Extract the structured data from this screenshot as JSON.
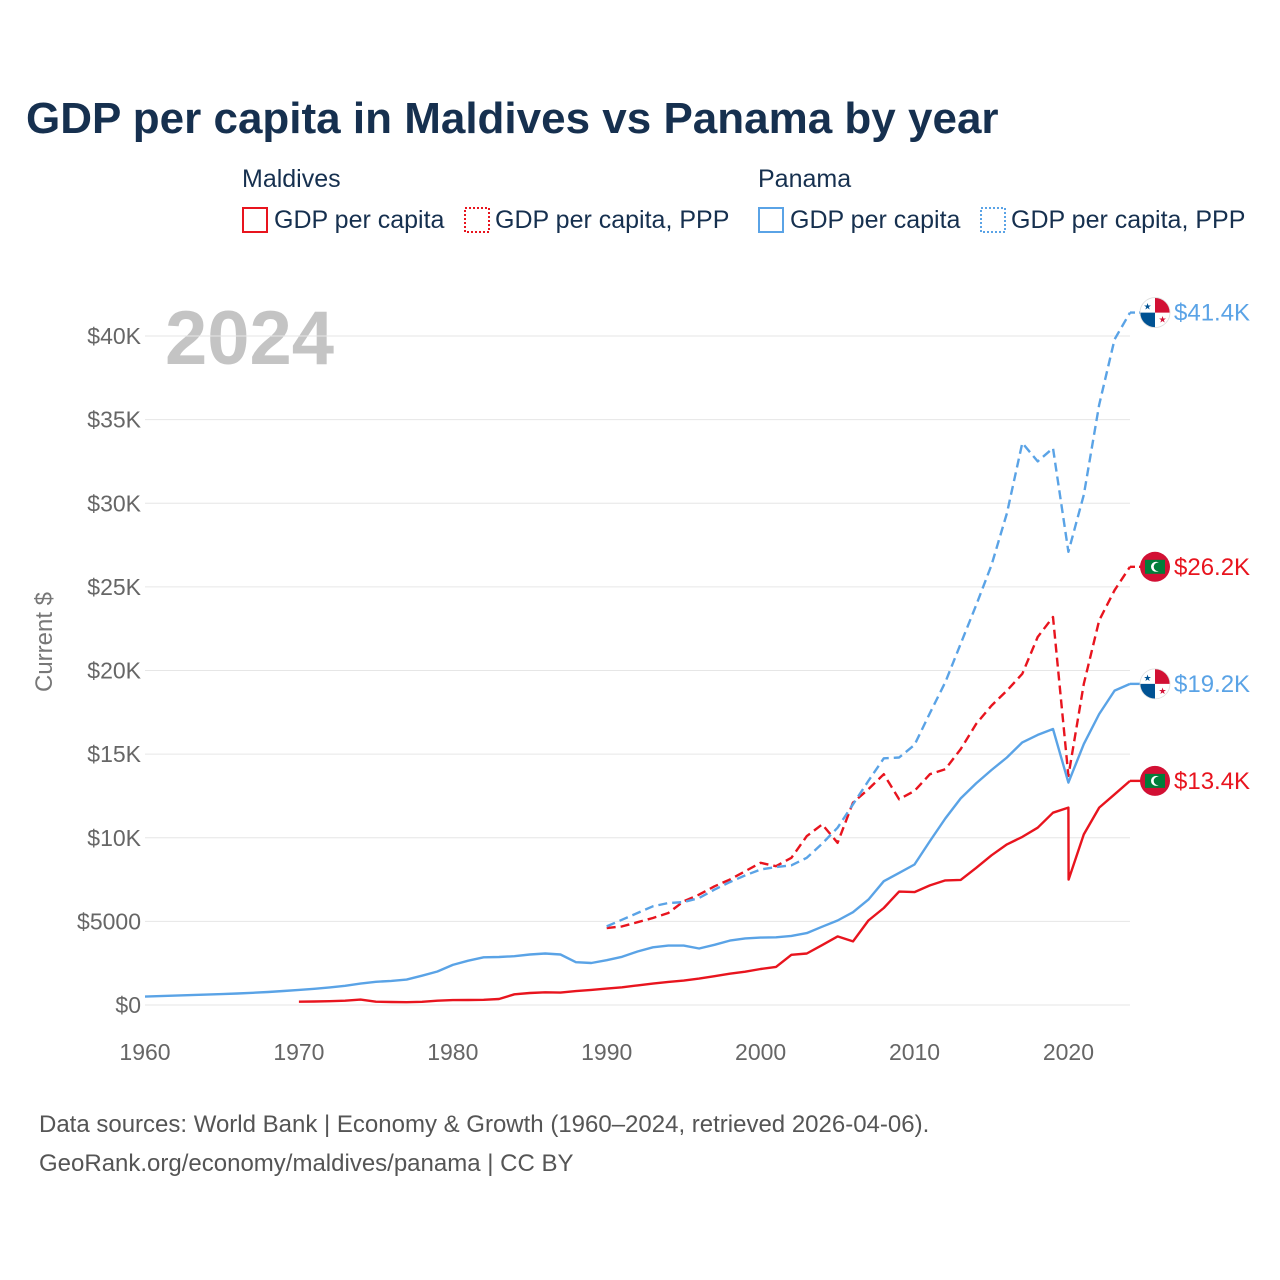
{
  "title": "GDP per capita in Maldives vs Panama by year",
  "year_label": "2024",
  "legend": {
    "groups": [
      {
        "name": "Maldives",
        "color": "#e8141e",
        "items": [
          {
            "label": "GDP per capita",
            "style": "solid"
          },
          {
            "label": "GDP per capita, PPP",
            "style": "dotted"
          }
        ]
      },
      {
        "name": "Panama",
        "color": "#5aa3e6",
        "items": [
          {
            "label": "GDP per capita",
            "style": "solid"
          },
          {
            "label": "GDP per capita, PPP",
            "style": "dotted"
          }
        ]
      }
    ]
  },
  "source": {
    "line1": "Data sources: World Bank | Economy & Growth (1960–2024, retrieved 2026-04-06).",
    "line2": "GeoRank.org/economy/maldives/panama | CC BY"
  },
  "chart_data": {
    "type": "line",
    "title": "GDP per capita in Maldives vs Panama by year",
    "xlabel": "",
    "ylabel": "Current $",
    "xlim": [
      1960,
      2024
    ],
    "ylim": [
      0,
      40000
    ],
    "x_ticks": [
      1960,
      1970,
      1980,
      1990,
      2000,
      2010,
      2020
    ],
    "x_tick_labels": [
      "1960",
      "1970",
      "1980",
      "1990",
      "2000",
      "2010",
      "2020"
    ],
    "y_ticks": [
      0,
      5000,
      10000,
      15000,
      20000,
      25000,
      30000,
      35000,
      40000
    ],
    "y_tick_labels": [
      "$0",
      "$5000",
      "$10K",
      "$15K",
      "$20K",
      "$25K",
      "$30K",
      "$35K",
      "$40K"
    ],
    "grid": true,
    "series": [
      {
        "name": "Maldives GDP per capita",
        "country": "Maldives",
        "color": "#e8141e",
        "dash": "solid",
        "end_label": "$13.4K",
        "flag": "maldives",
        "points": [
          [
            1970,
            200
          ],
          [
            1971,
            210
          ],
          [
            1972,
            230
          ],
          [
            1973,
            260
          ],
          [
            1974,
            320
          ],
          [
            1975,
            200
          ],
          [
            1976,
            180
          ],
          [
            1977,
            170
          ],
          [
            1978,
            190
          ],
          [
            1979,
            260
          ],
          [
            1980,
            290
          ],
          [
            1981,
            300
          ],
          [
            1982,
            310
          ],
          [
            1983,
            360
          ],
          [
            1984,
            640
          ],
          [
            1985,
            720
          ],
          [
            1986,
            760
          ],
          [
            1987,
            740
          ],
          [
            1988,
            830
          ],
          [
            1989,
            900
          ],
          [
            1990,
            980
          ],
          [
            1991,
            1060
          ],
          [
            1992,
            1170
          ],
          [
            1993,
            1280
          ],
          [
            1994,
            1380
          ],
          [
            1995,
            1460
          ],
          [
            1996,
            1580
          ],
          [
            1997,
            1720
          ],
          [
            1998,
            1870
          ],
          [
            1999,
            1990
          ],
          [
            2000,
            2150
          ],
          [
            2001,
            2280
          ],
          [
            2002,
            3000
          ],
          [
            2003,
            3080
          ],
          [
            2004,
            3580
          ],
          [
            2005,
            4100
          ],
          [
            2006,
            3800
          ],
          [
            2007,
            5050
          ],
          [
            2008,
            5800
          ],
          [
            2009,
            6780
          ],
          [
            2010,
            6750
          ],
          [
            2011,
            7150
          ],
          [
            2012,
            7450
          ],
          [
            2013,
            7480
          ],
          [
            2014,
            8200
          ],
          [
            2015,
            8950
          ],
          [
            2016,
            9600
          ],
          [
            2017,
            10050
          ],
          [
            2018,
            10600
          ],
          [
            2019,
            11500
          ],
          [
            2020,
            11800
          ],
          [
            2020.01,
            7500
          ],
          [
            2021,
            10200
          ],
          [
            2022,
            11800
          ],
          [
            2023,
            12600
          ],
          [
            2024,
            13400
          ]
        ]
      },
      {
        "name": "Maldives GDP per capita, PPP",
        "country": "Maldives",
        "color": "#e8141e",
        "dash": "dashed",
        "end_label": "$26.2K",
        "flag": "maldives",
        "points": [
          [
            1990,
            4600
          ],
          [
            1991,
            4700
          ],
          [
            1992,
            4950
          ],
          [
            1993,
            5200
          ],
          [
            1994,
            5500
          ],
          [
            1995,
            6200
          ],
          [
            1996,
            6600
          ],
          [
            1997,
            7100
          ],
          [
            1998,
            7500
          ],
          [
            1999,
            8000
          ],
          [
            2000,
            8500
          ],
          [
            2001,
            8300
          ],
          [
            2002,
            8800
          ],
          [
            2003,
            10100
          ],
          [
            2004,
            10800
          ],
          [
            2005,
            9700
          ],
          [
            2006,
            12100
          ],
          [
            2007,
            12900
          ],
          [
            2008,
            13800
          ],
          [
            2009,
            12300
          ],
          [
            2010,
            12800
          ],
          [
            2011,
            13800
          ],
          [
            2012,
            14100
          ],
          [
            2013,
            15300
          ],
          [
            2014,
            16800
          ],
          [
            2015,
            17900
          ],
          [
            2016,
            18800
          ],
          [
            2017,
            19800
          ],
          [
            2018,
            22000
          ],
          [
            2019,
            23200
          ],
          [
            2020,
            13700
          ],
          [
            2021,
            19200
          ],
          [
            2022,
            23000
          ],
          [
            2023,
            24800
          ],
          [
            2024,
            26200
          ]
        ]
      },
      {
        "name": "Panama GDP per capita",
        "country": "Panama",
        "color": "#5aa3e6",
        "dash": "solid",
        "end_label": "$19.2K",
        "flag": "panama",
        "points": [
          [
            1960,
            500
          ],
          [
            1961,
            530
          ],
          [
            1962,
            560
          ],
          [
            1963,
            590
          ],
          [
            1964,
            620
          ],
          [
            1965,
            650
          ],
          [
            1966,
            690
          ],
          [
            1967,
            730
          ],
          [
            1968,
            780
          ],
          [
            1969,
            840
          ],
          [
            1970,
            900
          ],
          [
            1971,
            970
          ],
          [
            1972,
            1050
          ],
          [
            1973,
            1150
          ],
          [
            1974,
            1280
          ],
          [
            1975,
            1390
          ],
          [
            1976,
            1440
          ],
          [
            1977,
            1520
          ],
          [
            1978,
            1750
          ],
          [
            1979,
            2000
          ],
          [
            1980,
            2400
          ],
          [
            1981,
            2650
          ],
          [
            1982,
            2850
          ],
          [
            1983,
            2870
          ],
          [
            1984,
            2920
          ],
          [
            1985,
            3020
          ],
          [
            1986,
            3080
          ],
          [
            1987,
            3020
          ],
          [
            1988,
            2560
          ],
          [
            1989,
            2510
          ],
          [
            1990,
            2680
          ],
          [
            1991,
            2880
          ],
          [
            1992,
            3200
          ],
          [
            1993,
            3450
          ],
          [
            1994,
            3550
          ],
          [
            1995,
            3550
          ],
          [
            1996,
            3380
          ],
          [
            1997,
            3600
          ],
          [
            1998,
            3850
          ],
          [
            1999,
            3980
          ],
          [
            2000,
            4030
          ],
          [
            2001,
            4050
          ],
          [
            2002,
            4130
          ],
          [
            2003,
            4300
          ],
          [
            2004,
            4680
          ],
          [
            2005,
            5050
          ],
          [
            2006,
            5550
          ],
          [
            2007,
            6300
          ],
          [
            2008,
            7400
          ],
          [
            2009,
            7900
          ],
          [
            2010,
            8400
          ],
          [
            2011,
            9800
          ],
          [
            2012,
            11150
          ],
          [
            2013,
            12350
          ],
          [
            2014,
            13250
          ],
          [
            2015,
            14050
          ],
          [
            2016,
            14800
          ],
          [
            2017,
            15700
          ],
          [
            2018,
            16150
          ],
          [
            2019,
            16500
          ],
          [
            2020,
            13300
          ],
          [
            2021,
            15600
          ],
          [
            2022,
            17400
          ],
          [
            2023,
            18800
          ],
          [
            2024,
            19200
          ]
        ]
      },
      {
        "name": "Panama GDP per capita, PPP",
        "country": "Panama",
        "color": "#5aa3e6",
        "dash": "dashed",
        "end_label": "$41.4K",
        "flag": "panama",
        "points": [
          [
            1990,
            4700
          ],
          [
            1991,
            5100
          ],
          [
            1992,
            5500
          ],
          [
            1993,
            5900
          ],
          [
            1994,
            6100
          ],
          [
            1995,
            6150
          ],
          [
            1996,
            6400
          ],
          [
            1997,
            6900
          ],
          [
            1998,
            7350
          ],
          [
            1999,
            7750
          ],
          [
            2000,
            8100
          ],
          [
            2001,
            8250
          ],
          [
            2002,
            8350
          ],
          [
            2003,
            8800
          ],
          [
            2004,
            9650
          ],
          [
            2005,
            10600
          ],
          [
            2006,
            12000
          ],
          [
            2007,
            13400
          ],
          [
            2008,
            14750
          ],
          [
            2009,
            14800
          ],
          [
            2010,
            15550
          ],
          [
            2011,
            17450
          ],
          [
            2012,
            19300
          ],
          [
            2013,
            21600
          ],
          [
            2014,
            23900
          ],
          [
            2015,
            26300
          ],
          [
            2016,
            29400
          ],
          [
            2017,
            33600
          ],
          [
            2018,
            32500
          ],
          [
            2019,
            33300
          ],
          [
            2020,
            27100
          ],
          [
            2021,
            30500
          ],
          [
            2022,
            35900
          ],
          [
            2023,
            39800
          ],
          [
            2024,
            41400
          ]
        ]
      }
    ]
  }
}
